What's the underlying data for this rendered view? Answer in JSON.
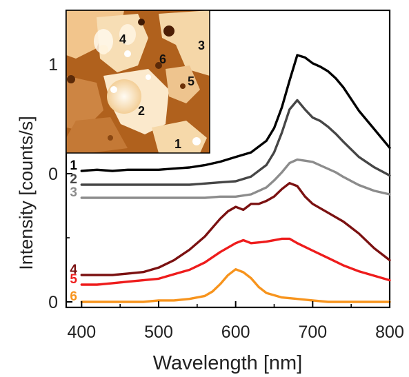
{
  "chart_data": {
    "type": "line",
    "xlabel": "Wavelength [nm]",
    "ylabel": "Intensity [counts/s]",
    "xlim": [
      380,
      800
    ],
    "ylim": [
      0,
      1.4
    ],
    "xticks": [
      "400",
      "500",
      "600",
      "700",
      "800"
    ],
    "yticks": [
      "0",
      "0",
      "1"
    ],
    "grid": false,
    "inset": {
      "type": "image",
      "description_labels": [
        "4",
        "6",
        "3",
        "5",
        "2",
        "1"
      ]
    },
    "series": [
      {
        "name": "1",
        "color": "#000000",
        "x": [
          400,
          420,
          440,
          460,
          480,
          500,
          520,
          540,
          560,
          580,
          600,
          620,
          640,
          650,
          660,
          670,
          680,
          690,
          700,
          710,
          720,
          730,
          740,
          760,
          780,
          800
        ],
        "y": [
          0.0,
          0.01,
          0.0,
          0.01,
          0.01,
          0.01,
          0.02,
          0.03,
          0.05,
          0.08,
          0.12,
          0.16,
          0.26,
          0.37,
          0.55,
          0.78,
          1.0,
          0.98,
          0.93,
          0.9,
          0.86,
          0.8,
          0.72,
          0.52,
          0.36,
          0.2
        ]
      },
      {
        "name": "2",
        "color": "#464646",
        "x": [
          400,
          420,
          440,
          460,
          480,
          500,
          520,
          540,
          560,
          580,
          600,
          620,
          640,
          650,
          660,
          670,
          680,
          690,
          700,
          710,
          720,
          730,
          740,
          760,
          780,
          800
        ],
        "y": [
          0.0,
          0.0,
          0.0,
          0.0,
          0.0,
          0.0,
          0.0,
          0.0,
          0.01,
          0.02,
          0.03,
          0.07,
          0.17,
          0.28,
          0.45,
          0.65,
          0.73,
          0.65,
          0.58,
          0.55,
          0.5,
          0.44,
          0.37,
          0.24,
          0.15,
          0.08
        ]
      },
      {
        "name": "3",
        "color": "#8c8c8c",
        "x": [
          400,
          420,
          440,
          460,
          480,
          500,
          520,
          540,
          560,
          580,
          600,
          620,
          640,
          650,
          660,
          670,
          680,
          690,
          700,
          710,
          720,
          730,
          740,
          760,
          780,
          800
        ],
        "y": [
          0.0,
          0.0,
          0.0,
          0.0,
          0.0,
          0.0,
          0.0,
          0.0,
          0.0,
          0.01,
          0.01,
          0.03,
          0.09,
          0.15,
          0.22,
          0.3,
          0.33,
          0.32,
          0.31,
          0.28,
          0.25,
          0.22,
          0.18,
          0.11,
          0.06,
          0.03
        ]
      },
      {
        "name": "4",
        "color": "#7b1111",
        "x": [
          400,
          420,
          440,
          460,
          480,
          500,
          520,
          540,
          560,
          580,
          590,
          600,
          610,
          620,
          630,
          640,
          650,
          660,
          670,
          680,
          690,
          700,
          720,
          740,
          760,
          780,
          800
        ],
        "y": [
          0.0,
          0.0,
          0.0,
          0.01,
          0.02,
          0.05,
          0.1,
          0.17,
          0.26,
          0.38,
          0.43,
          0.46,
          0.44,
          0.48,
          0.48,
          0.5,
          0.53,
          0.58,
          0.62,
          0.6,
          0.53,
          0.48,
          0.42,
          0.36,
          0.28,
          0.18,
          0.1
        ]
      },
      {
        "name": "5",
        "color": "#ee1c1c",
        "x": [
          400,
          420,
          440,
          460,
          480,
          500,
          520,
          540,
          560,
          580,
          600,
          610,
          620,
          640,
          660,
          670,
          680,
          700,
          720,
          740,
          760,
          780,
          800
        ],
        "y": [
          0.0,
          0.0,
          0.01,
          0.02,
          0.03,
          0.04,
          0.07,
          0.1,
          0.15,
          0.22,
          0.28,
          0.3,
          0.28,
          0.29,
          0.31,
          0.31,
          0.28,
          0.23,
          0.18,
          0.13,
          0.09,
          0.06,
          0.03
        ]
      },
      {
        "name": "6",
        "color": "#f7941d",
        "x": [
          400,
          420,
          440,
          460,
          480,
          500,
          520,
          540,
          560,
          570,
          580,
          590,
          600,
          610,
          620,
          630,
          640,
          660,
          680,
          700,
          720,
          740,
          760,
          780,
          800
        ],
        "y": [
          0.0,
          0.0,
          0.0,
          0.0,
          0.0,
          0.01,
          0.01,
          0.02,
          0.04,
          0.07,
          0.12,
          0.18,
          0.22,
          0.2,
          0.16,
          0.1,
          0.06,
          0.03,
          0.02,
          0.01,
          0.0,
          0.0,
          0.0,
          0.0,
          0.0
        ]
      }
    ]
  }
}
